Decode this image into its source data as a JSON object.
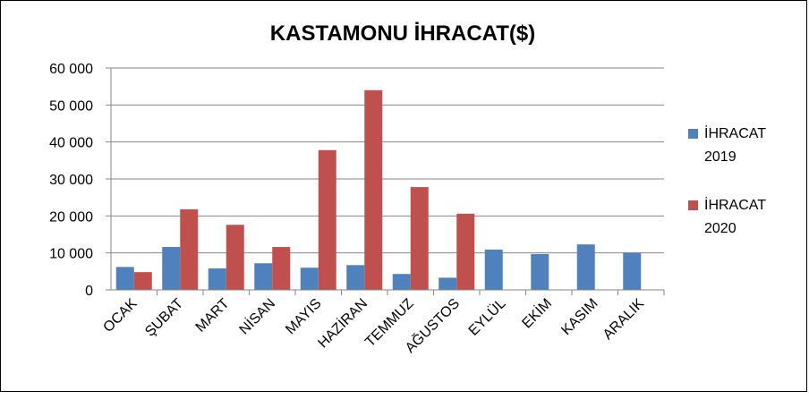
{
  "chart_data": {
    "type": "bar",
    "title": "KASTAMONU İHRACAT($)",
    "xlabel": "",
    "ylabel": "",
    "ylim": [
      0,
      60000
    ],
    "yticks": [
      0,
      10000,
      20000,
      30000,
      40000,
      50000,
      60000
    ],
    "ytick_labels": [
      "0",
      "10 000",
      "20 000",
      "30 000",
      "40 000",
      "50 000",
      "60 000"
    ],
    "grid": true,
    "legend_position": "right",
    "categories": [
      "OCAK",
      "ŞUBAT",
      "MART",
      "NİSAN",
      "MAYIS",
      "HAZİRAN",
      "TEMMUZ",
      "AĞUSTOS",
      "EYLÜL",
      "EKİM",
      "KASIM",
      "ARALIK"
    ],
    "series": [
      {
        "name": "İHRACAT 2019",
        "legend_lines": [
          "İHRACAT",
          "2019"
        ],
        "color": "#4F81BD",
        "values": [
          6200,
          11600,
          5800,
          7200,
          6000,
          6700,
          4300,
          3300,
          10900,
          9700,
          12300,
          10100
        ]
      },
      {
        "name": "İHRACAT 2020",
        "legend_lines": [
          "İHRACAT",
          "2020"
        ],
        "color": "#C0504D",
        "values": [
          4800,
          21800,
          17600,
          11600,
          37800,
          54000,
          27800,
          20600,
          null,
          null,
          null,
          null
        ]
      }
    ]
  }
}
